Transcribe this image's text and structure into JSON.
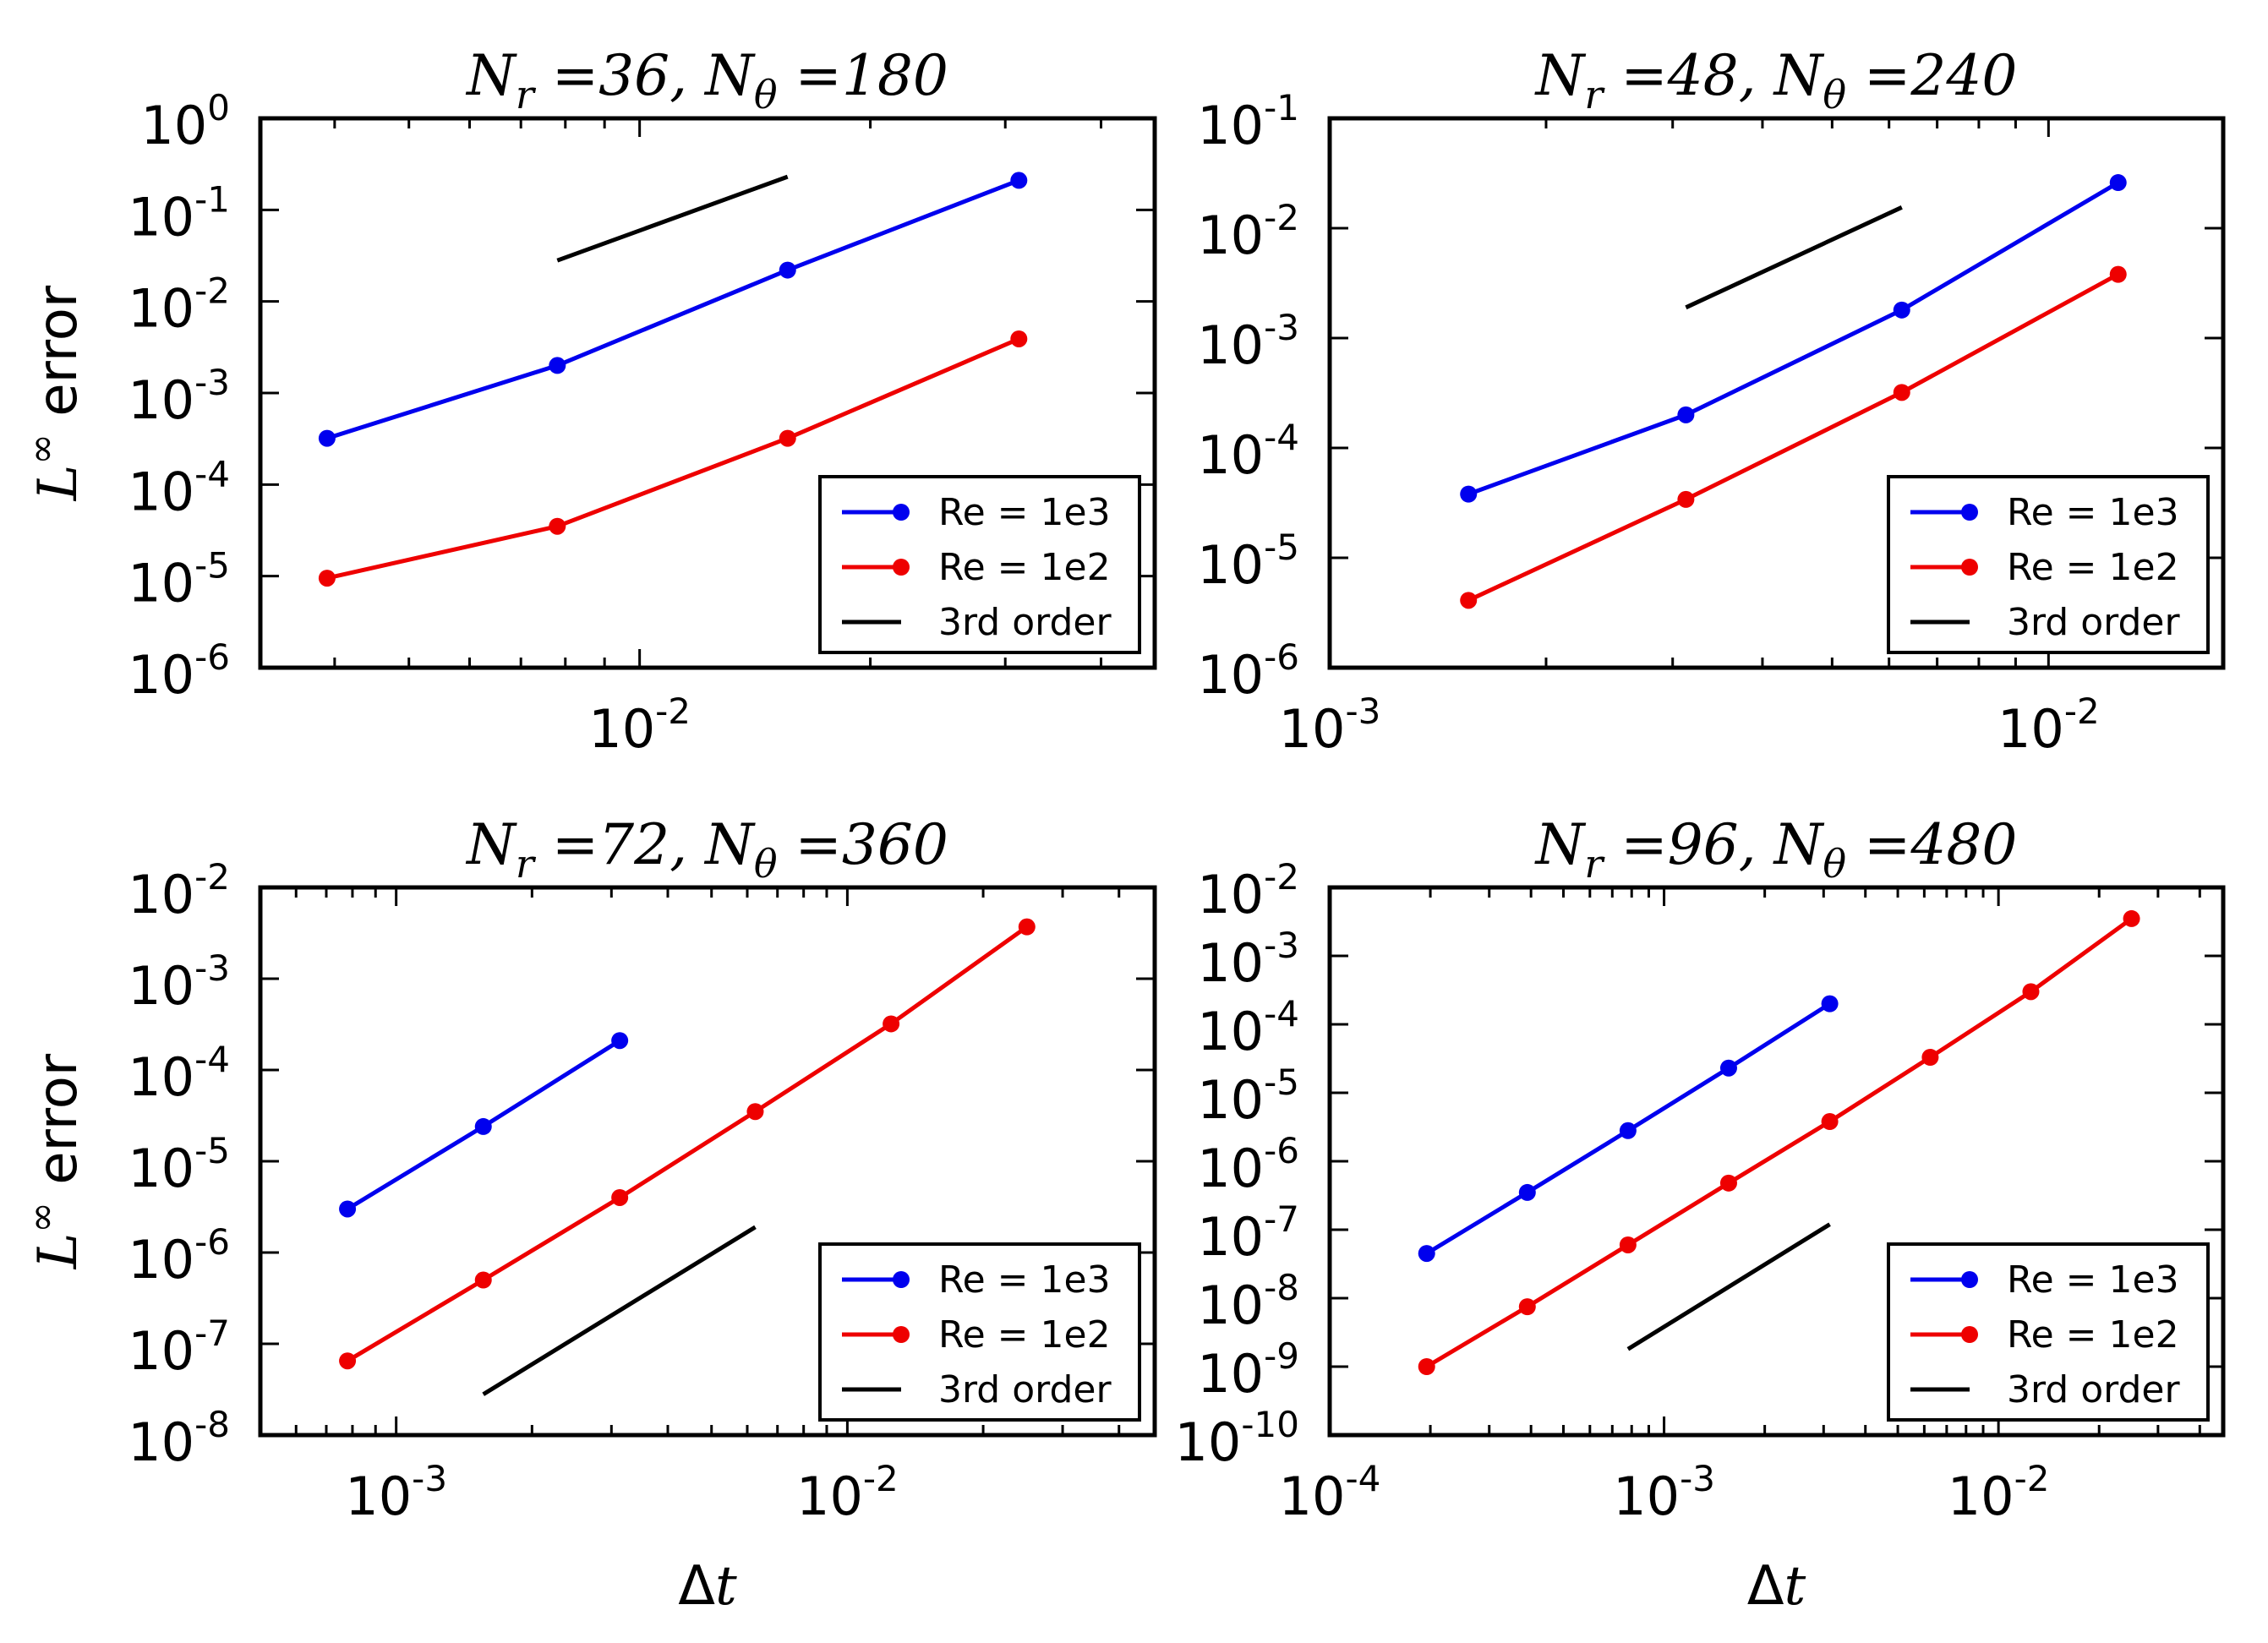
{
  "figure": {
    "shared": {
      "ylabel_italic": "L",
      "ylabel_sup": "∞",
      "ylabel_rest": "error",
      "xlabel": "Δt",
      "legend": [
        "Re = 1e3",
        "Re = 1e2",
        "3rd order"
      ]
    },
    "colors": {
      "re1e3": "#0000ee",
      "re1e2": "#ee0000",
      "third": "#000000"
    }
  },
  "chart_data": [
    {
      "type": "line",
      "title": "N_r =36, N_θ =180",
      "title_parts": {
        "r_val": "36",
        "theta_val": "180"
      },
      "xscale": "log",
      "yscale": "log",
      "xlim": [
        0.0032,
        0.047
      ],
      "ylim": [
        1e-06,
        1
      ],
      "xticks": [
        {
          "value": 0.01,
          "base": "10",
          "exp": "-2"
        }
      ],
      "yticks": [
        {
          "value": 1,
          "base": "10",
          "exp": "0"
        },
        {
          "value": 0.1,
          "base": "10",
          "exp": "-1"
        },
        {
          "value": 0.01,
          "base": "10",
          "exp": "-2"
        },
        {
          "value": 0.001,
          "base": "10",
          "exp": "-3"
        },
        {
          "value": 0.0001,
          "base": "10",
          "exp": "-4"
        },
        {
          "value": 1e-05,
          "base": "10",
          "exp": "-5"
        },
        {
          "value": 1e-06,
          "base": "10",
          "exp": "-6"
        }
      ],
      "xlabel": "",
      "ylabel": "L∞ error",
      "legend_position": "lower-right",
      "series": [
        {
          "name": "Re = 1e3",
          "color": "#0000ee",
          "markers": true,
          "x": [
            0.00391,
            0.00781,
            0.0156,
            0.03125
          ],
          "y": [
            0.00032,
            0.002,
            0.022,
            0.21
          ]
        },
        {
          "name": "Re = 1e2",
          "color": "#ee0000",
          "markers": true,
          "x": [
            0.00391,
            0.00781,
            0.0156,
            0.03125
          ],
          "y": [
            9.5e-06,
            3.5e-05,
            0.00032,
            0.0039
          ]
        },
        {
          "name": "3rd order",
          "color": "#000000",
          "markers": false,
          "x": [
            0.00781,
            0.0156
          ],
          "y": [
            0.028,
            0.23
          ]
        }
      ]
    },
    {
      "type": "line",
      "title": "N_r =48, N_θ =240",
      "title_parts": {
        "r_val": "48",
        "theta_val": "240"
      },
      "xscale": "log",
      "yscale": "log",
      "xlim": [
        0.001,
        0.0175
      ],
      "ylim": [
        1e-06,
        0.1
      ],
      "xticks": [
        {
          "value": 0.001,
          "base": "10",
          "exp": "-3"
        },
        {
          "value": 0.01,
          "base": "10",
          "exp": "-2"
        }
      ],
      "yticks": [
        {
          "value": 0.1,
          "base": "10",
          "exp": "-1"
        },
        {
          "value": 0.01,
          "base": "10",
          "exp": "-2"
        },
        {
          "value": 0.001,
          "base": "10",
          "exp": "-3"
        },
        {
          "value": 0.0001,
          "base": "10",
          "exp": "-4"
        },
        {
          "value": 1e-05,
          "base": "10",
          "exp": "-5"
        },
        {
          "value": 1e-06,
          "base": "10",
          "exp": "-6"
        }
      ],
      "xlabel": "",
      "ylabel": "",
      "legend_position": "lower-right",
      "series": [
        {
          "name": "Re = 1e3",
          "color": "#0000ee",
          "markers": true,
          "x": [
            0.00156,
            0.00313,
            0.00625,
            0.0125
          ],
          "y": [
            3.8e-05,
            0.0002,
            0.0018,
            0.026
          ]
        },
        {
          "name": "Re = 1e2",
          "color": "#ee0000",
          "markers": true,
          "x": [
            0.00156,
            0.00313,
            0.00625,
            0.0125
          ],
          "y": [
            4.1e-06,
            3.4e-05,
            0.00032,
            0.0038
          ]
        },
        {
          "name": "3rd order",
          "color": "#000000",
          "markers": false,
          "x": [
            0.00313,
            0.00625
          ],
          "y": [
            0.0019,
            0.0155
          ]
        }
      ]
    },
    {
      "type": "line",
      "title": "N_r =72, N_θ =360",
      "title_parts": {
        "r_val": "72",
        "theta_val": "360"
      },
      "xscale": "log",
      "yscale": "log",
      "xlim": [
        0.0005,
        0.048
      ],
      "ylim": [
        1e-08,
        0.01
      ],
      "xticks": [
        {
          "value": 0.001,
          "base": "10",
          "exp": "-3"
        },
        {
          "value": 0.01,
          "base": "10",
          "exp": "-2"
        }
      ],
      "yticks": [
        {
          "value": 0.01,
          "base": "10",
          "exp": "-2"
        },
        {
          "value": 0.001,
          "base": "10",
          "exp": "-3"
        },
        {
          "value": 0.0001,
          "base": "10",
          "exp": "-4"
        },
        {
          "value": 1e-05,
          "base": "10",
          "exp": "-5"
        },
        {
          "value": 1e-06,
          "base": "10",
          "exp": "-6"
        },
        {
          "value": 1e-07,
          "base": "10",
          "exp": "-7"
        },
        {
          "value": 1e-08,
          "base": "10",
          "exp": "-8"
        }
      ],
      "xlabel": "Δt",
      "ylabel": "L∞ error",
      "legend_position": "lower-right",
      "series": [
        {
          "name": "Re = 1e3",
          "color": "#0000ee",
          "markers": true,
          "x": [
            0.00078,
            0.00156,
            0.00313
          ],
          "y": [
            3e-06,
            2.4e-05,
            0.00021
          ]
        },
        {
          "name": "Re = 1e2",
          "color": "#ee0000",
          "markers": true,
          "x": [
            0.00078,
            0.00156,
            0.00313,
            0.00625,
            0.0125,
            0.025
          ],
          "y": [
            6.5e-08,
            5e-07,
            4e-06,
            3.5e-05,
            0.00032,
            0.0037
          ]
        },
        {
          "name": "3rd order",
          "color": "#000000",
          "markers": false,
          "x": [
            0.00156,
            0.00625
          ],
          "y": [
            2.8e-08,
            1.9e-06
          ]
        }
      ]
    },
    {
      "type": "line",
      "title": "N_r =96, N_θ =480",
      "title_parts": {
        "r_val": "96",
        "theta_val": "480"
      },
      "xscale": "log",
      "yscale": "log",
      "xlim": [
        0.0001,
        0.047
      ],
      "ylim": [
        1e-10,
        0.01
      ],
      "xticks": [
        {
          "value": 0.0001,
          "base": "10",
          "exp": "-4"
        },
        {
          "value": 0.001,
          "base": "10",
          "exp": "-3"
        },
        {
          "value": 0.01,
          "base": "10",
          "exp": "-2"
        }
      ],
      "yticks": [
        {
          "value": 0.01,
          "base": "10",
          "exp": "-2"
        },
        {
          "value": 0.001,
          "base": "10",
          "exp": "-3"
        },
        {
          "value": 0.0001,
          "base": "10",
          "exp": "-4"
        },
        {
          "value": 1e-05,
          "base": "10",
          "exp": "-5"
        },
        {
          "value": 1e-06,
          "base": "10",
          "exp": "-6"
        },
        {
          "value": 1e-07,
          "base": "10",
          "exp": "-7"
        },
        {
          "value": 1e-08,
          "base": "10",
          "exp": "-8"
        },
        {
          "value": 1e-09,
          "base": "10",
          "exp": "-9"
        },
        {
          "value": 1e-10,
          "base": "10",
          "exp": "-10"
        }
      ],
      "xlabel": "Δt",
      "ylabel": "",
      "legend_position": "lower-right",
      "series": [
        {
          "name": "Re = 1e3",
          "color": "#0000ee",
          "markers": true,
          "x": [
            0.000195,
            0.00039,
            0.00078,
            0.00156,
            0.00313
          ],
          "y": [
            4.5e-08,
            3.5e-07,
            2.8e-06,
            2.3e-05,
            0.0002
          ]
        },
        {
          "name": "Re = 1e2",
          "color": "#ee0000",
          "markers": true,
          "x": [
            0.000195,
            0.00039,
            0.00078,
            0.00156,
            0.00313,
            0.00625,
            0.0125,
            0.025
          ],
          "y": [
            1e-09,
            7.5e-09,
            6e-08,
            4.8e-07,
            3.8e-06,
            3.3e-05,
            0.0003,
            0.0035
          ]
        },
        {
          "name": "3rd order",
          "color": "#000000",
          "markers": false,
          "x": [
            0.00078,
            0.00313
          ],
          "y": [
            1.8e-09,
            1.2e-07
          ]
        }
      ]
    }
  ]
}
